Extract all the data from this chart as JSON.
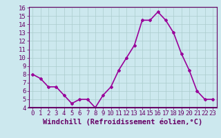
{
  "x": [
    0,
    1,
    2,
    3,
    4,
    5,
    6,
    7,
    8,
    9,
    10,
    11,
    12,
    13,
    14,
    15,
    16,
    17,
    18,
    19,
    20,
    21,
    22,
    23
  ],
  "y": [
    8.0,
    7.5,
    6.5,
    6.5,
    5.5,
    4.5,
    5.0,
    5.0,
    4.0,
    5.5,
    6.5,
    8.5,
    10.0,
    11.5,
    14.5,
    14.5,
    15.5,
    14.5,
    13.0,
    10.5,
    8.5,
    6.0,
    5.0,
    5.0
  ],
  "line_color": "#990099",
  "marker": "D",
  "marker_size": 2,
  "bg_color": "#cce8ee",
  "grid_color": "#aacccc",
  "xlabel": "Windchill (Refroidissement éolien,°C)",
  "ylim": [
    4,
    16
  ],
  "xlim": [
    -0.5,
    23.5
  ],
  "yticks": [
    4,
    5,
    6,
    7,
    8,
    9,
    10,
    11,
    12,
    13,
    14,
    15,
    16
  ],
  "xticks": [
    0,
    1,
    2,
    3,
    4,
    5,
    6,
    7,
    8,
    9,
    10,
    11,
    12,
    13,
    14,
    15,
    16,
    17,
    18,
    19,
    20,
    21,
    22,
    23
  ],
  "tick_label_color": "#660066",
  "xlabel_color": "#660066",
  "xlabel_fontsize": 7.5,
  "tick_fontsize": 6.5,
  "linewidth": 1.2,
  "axis_color": "#660066",
  "spine_color": "#660066"
}
